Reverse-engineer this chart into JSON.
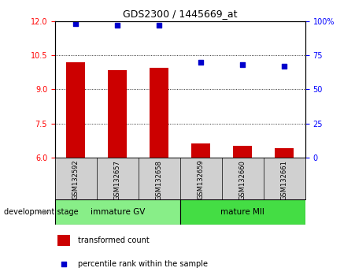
{
  "title": "GDS2300 / 1445669_at",
  "categories": [
    "GSM132592",
    "GSM132657",
    "GSM132658",
    "GSM132659",
    "GSM132660",
    "GSM132661"
  ],
  "bar_values": [
    10.2,
    9.85,
    9.95,
    6.62,
    6.52,
    6.42
  ],
  "percentile_values": [
    98,
    97,
    97,
    70,
    68,
    67
  ],
  "ylim_left": [
    6,
    12
  ],
  "ylim_right": [
    0,
    100
  ],
  "yticks_left": [
    6,
    7.5,
    9,
    10.5,
    12
  ],
  "yticks_right": [
    0,
    25,
    50,
    75,
    100
  ],
  "ytick_labels_right": [
    "0",
    "25",
    "50",
    "75",
    "100%"
  ],
  "bar_color": "#cc0000",
  "scatter_color": "#0000cc",
  "group1_label": "immature GV",
  "group2_label": "mature MII",
  "group1_indices": [
    0,
    1,
    2
  ],
  "group2_indices": [
    3,
    4,
    5
  ],
  "group1_color": "#88ee88",
  "group2_color": "#44dd44",
  "stage_label": "development stage",
  "legend_bar_label": "transformed count",
  "legend_scatter_label": "percentile rank within the sample",
  "bar_width": 0.45,
  "label_box_color": "#d0d0d0"
}
